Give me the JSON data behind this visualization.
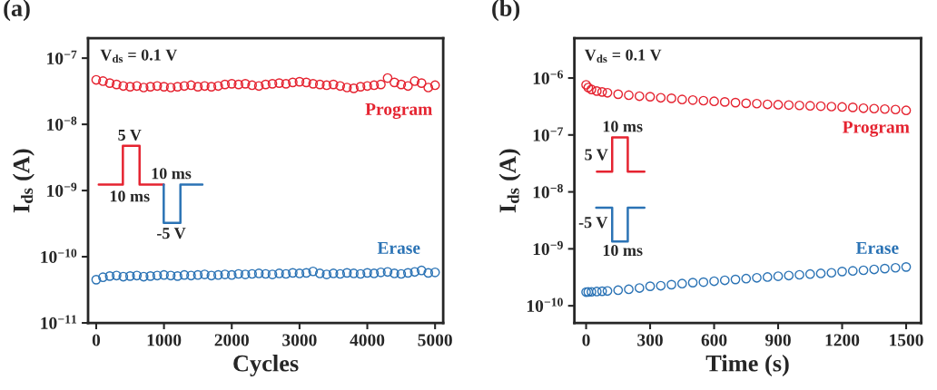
{
  "chart_data": [
    {
      "type": "scatter",
      "title": "(a)",
      "xlabel": "Cycles",
      "ylabel": "I$_{ds}$ (A)",
      "log": "y",
      "marker": "circle",
      "xlim": [
        -120,
        5120
      ],
      "ylim": [
        1e-11,
        2e-07
      ],
      "xticks": [
        0,
        1000,
        2000,
        3000,
        4000,
        5000
      ],
      "yticks": [
        {
          "value": 1e-11,
          "label": "10$^{−11}$"
        },
        {
          "value": 1e-10,
          "label": "10$^{−10}$"
        },
        {
          "value": 1e-09,
          "label": "10$^{−9}$"
        },
        {
          "value": 1e-08,
          "label": "10$^{−8}$"
        },
        {
          "value": 1e-07,
          "label": "10$^{−7}$"
        }
      ],
      "annotations": [
        "V$_{ds}$ = 0.1 V",
        "5 V",
        "10 ms",
        "10 ms",
        "-5 V"
      ],
      "x": [
        0,
        100,
        200,
        300,
        400,
        500,
        600,
        700,
        800,
        900,
        1000,
        1100,
        1200,
        1300,
        1400,
        1500,
        1600,
        1700,
        1800,
        1900,
        2000,
        2100,
        2200,
        2300,
        2400,
        2500,
        2600,
        2700,
        2800,
        2900,
        3000,
        3100,
        3200,
        3300,
        3400,
        3500,
        3600,
        3700,
        3800,
        3900,
        4000,
        4100,
        4200,
        4300,
        4400,
        4500,
        4600,
        4700,
        4800,
        4900,
        5000
      ],
      "series": [
        {
          "name": "Program",
          "color": "#e52330",
          "values": [
            4.7e-08,
            4.5e-08,
            4.2e-08,
            4e-08,
            3.8e-08,
            3.7e-08,
            3.8e-08,
            3.6e-08,
            3.7e-08,
            3.8e-08,
            3.7e-08,
            3.6e-08,
            3.7e-08,
            3.8e-08,
            3.9e-08,
            3.7e-08,
            3.8e-08,
            3.7e-08,
            3.8e-08,
            4e-08,
            4.1e-08,
            4e-08,
            4.1e-08,
            3.9e-08,
            3.8e-08,
            4e-08,
            4.1e-08,
            4.2e-08,
            4.1e-08,
            4.3e-08,
            4.4e-08,
            4.3e-08,
            4.1e-08,
            4e-08,
            3.9e-08,
            4e-08,
            3.8e-08,
            3.6e-08,
            3.5e-08,
            3.7e-08,
            3.8e-08,
            3.9e-08,
            4e-08,
            5e-08,
            4.3e-08,
            4e-08,
            3.8e-08,
            4.5e-08,
            4.2e-08,
            3.6e-08,
            3.9e-08
          ]
        },
        {
          "name": "Erase",
          "color": "#2b73b5",
          "values": [
            4.5e-11,
            4.9e-11,
            5.1e-11,
            5.2e-11,
            5e-11,
            5.1e-11,
            5.2e-11,
            5e-11,
            5.1e-11,
            5.2e-11,
            5.3e-11,
            5.2e-11,
            5.1e-11,
            5.3e-11,
            5.2e-11,
            5.3e-11,
            5.4e-11,
            5.2e-11,
            5.3e-11,
            5.4e-11,
            5.3e-11,
            5.5e-11,
            5.4e-11,
            5.5e-11,
            5.6e-11,
            5.5e-11,
            5.4e-11,
            5.6e-11,
            5.5e-11,
            5.7e-11,
            5.6e-11,
            5.7e-11,
            6e-11,
            5.6e-11,
            5.4e-11,
            5.6e-11,
            5.5e-11,
            5.7e-11,
            5.6e-11,
            5.5e-11,
            5.7e-11,
            5.6e-11,
            5.8e-11,
            5.9e-11,
            5.6e-11,
            5.5e-11,
            5.7e-11,
            5.9e-11,
            6.2e-11,
            5.7e-11,
            5.8e-11
          ]
        }
      ]
    },
    {
      "type": "scatter",
      "title": "(b)",
      "xlabel": "Time (s)",
      "ylabel": "I$_{ds}$ (A)",
      "log": "y",
      "marker": "circle",
      "xlim": [
        -55,
        1570
      ],
      "ylim": [
        5e-11,
        5e-06
      ],
      "xticks": [
        0,
        300,
        600,
        900,
        1200,
        1500
      ],
      "yticks": [
        {
          "value": 1e-10,
          "label": "10$^{−10}$"
        },
        {
          "value": 1e-09,
          "label": "10$^{−9}$"
        },
        {
          "value": 1e-08,
          "label": "10$^{−8}$"
        },
        {
          "value": 1e-07,
          "label": "10$^{−7}$"
        },
        {
          "value": 1e-06,
          "label": "10$^{−6}$"
        }
      ],
      "annotations": [
        "V$_{ds}$ = 0.1 V",
        "10 ms",
        "5 V",
        "-5 V",
        "10 ms"
      ],
      "x": [
        0,
        10,
        25,
        50,
        75,
        100,
        150,
        200,
        250,
        300,
        350,
        400,
        450,
        500,
        550,
        600,
        650,
        700,
        750,
        800,
        850,
        900,
        950,
        1000,
        1050,
        1100,
        1150,
        1200,
        1250,
        1300,
        1350,
        1400,
        1450,
        1500
      ],
      "series": [
        {
          "name": "Program",
          "color": "#e52330",
          "values": [
            7.6e-07,
            6.8e-07,
            6.3e-07,
            5.9e-07,
            5.7e-07,
            5.5e-07,
            5.2e-07,
            5e-07,
            4.8e-07,
            4.7e-07,
            4.5e-07,
            4.4e-07,
            4.2e-07,
            4.1e-07,
            4e-07,
            3.9e-07,
            3.8e-07,
            3.7e-07,
            3.6e-07,
            3.55e-07,
            3.45e-07,
            3.4e-07,
            3.35e-07,
            3.3e-07,
            3.25e-07,
            3.2e-07,
            3.15e-07,
            3.1e-07,
            3.05e-07,
            2.95e-07,
            2.9e-07,
            2.85e-07,
            2.8e-07,
            2.7e-07
          ]
        },
        {
          "name": "Erase",
          "color": "#2b73b5",
          "values": [
            1.74e-10,
            1.75e-10,
            1.76e-10,
            1.78e-10,
            1.8e-10,
            1.82e-10,
            1.88e-10,
            1.95e-10,
            2.05e-10,
            2.2e-10,
            2.25e-10,
            2.35e-10,
            2.45e-10,
            2.55e-10,
            2.6e-10,
            2.7e-10,
            2.8e-10,
            2.9e-10,
            3e-10,
            3.1e-10,
            3.2e-10,
            3.3e-10,
            3.4e-10,
            3.5e-10,
            3.6e-10,
            3.7e-10,
            3.8e-10,
            4e-10,
            4.1e-10,
            4.2e-10,
            4.35e-10,
            4.5e-10,
            4.65e-10,
            4.8e-10
          ]
        }
      ]
    }
  ]
}
